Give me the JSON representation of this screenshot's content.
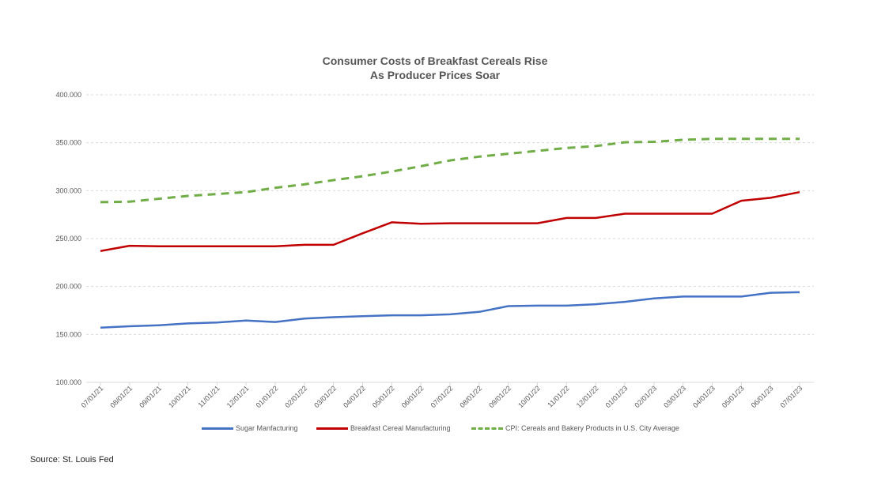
{
  "chart_data": {
    "type": "line",
    "title_line1": "Consumer Costs of Breakfast Cereals Rise",
    "title_line2": "As Producer Prices Soar",
    "xlabel": "",
    "ylabel": "",
    "ylim": [
      100,
      400
    ],
    "yticks": [
      "100.000",
      "150.000",
      "200.000",
      "250.000",
      "300.000",
      "350.000",
      "400.000"
    ],
    "ytick_values": [
      100,
      150,
      200,
      250,
      300,
      350,
      400
    ],
    "grid": true,
    "legend_position": "bottom",
    "x": [
      "07/01/21",
      "08/01/21",
      "09/01/21",
      "10/01/21",
      "11/01/21",
      "12/01/21",
      "01/01/22",
      "02/01/22",
      "03/01/22",
      "04/01/22",
      "05/01/22",
      "06/01/22",
      "07/01/22",
      "08/01/22",
      "09/01/22",
      "10/01/22",
      "11/01/22",
      "12/01/22",
      "01/01/23",
      "02/01/23",
      "03/01/23",
      "04/01/23",
      "05/01/23",
      "06/01/23",
      "07/01/23"
    ],
    "series": [
      {
        "name": "Sugar Manfacturing",
        "color": "#4472C4",
        "dashed": false,
        "values": [
          157,
          158.5,
          159.5,
          161.5,
          162.5,
          164.5,
          163,
          166.5,
          168,
          169,
          170,
          170,
          171,
          173.5,
          179.5,
          180,
          180,
          181.5,
          184,
          187.5,
          189.5,
          189.5,
          189.5,
          193.5,
          194
        ]
      },
      {
        "name": "Breakfast Cereal Manufacturing",
        "color": "#C00000",
        "dashed": false,
        "values": [
          237,
          242.5,
          242,
          242,
          242,
          242,
          242,
          243.5,
          243.5,
          255.5,
          267,
          265.5,
          266,
          266,
          266,
          266,
          271.5,
          271.5,
          276,
          276,
          276,
          276,
          289.5,
          292.5,
          298.5
        ]
      },
      {
        "name": "CPI: Cereals and Bakery Products in U.S. City Average",
        "color": "#70AD47",
        "dashed": true,
        "values": [
          288,
          288.5,
          291.5,
          294.5,
          296.5,
          298.5,
          303,
          306.5,
          311,
          315,
          320,
          325.5,
          331.5,
          335.5,
          338.5,
          341.5,
          344.5,
          346.5,
          350.5,
          351,
          353,
          354,
          354,
          354,
          354
        ]
      }
    ]
  },
  "source": "Source: St. Louis Fed"
}
